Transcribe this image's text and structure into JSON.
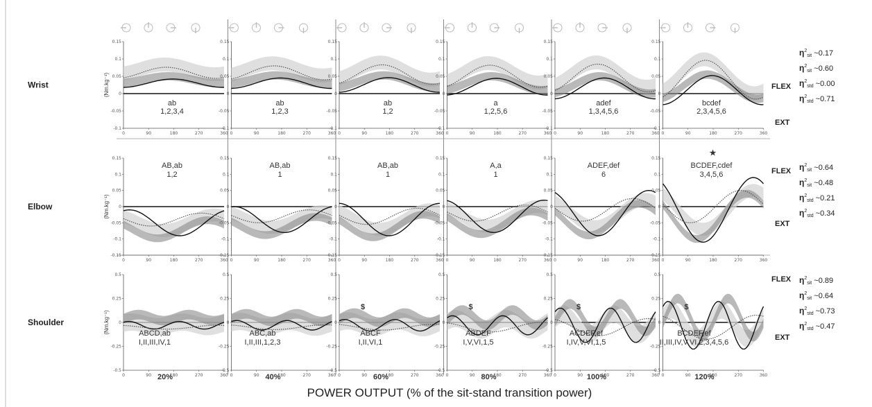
{
  "chart_data": {
    "type": "line",
    "title": "",
    "xlabel": "POWER OUTPUT (% of the sit-stand transition power)",
    "ylabel": "(Nm.kg⁻¹)",
    "columns": [
      "20%",
      "40%",
      "60%",
      "80%",
      "100%",
      "120%"
    ],
    "x_ticks": [
      "0",
      "90",
      "180",
      "270",
      "360"
    ],
    "rows": [
      {
        "name": "Wrist",
        "y_ticks": [
          "0.15",
          "0.1",
          "0.05",
          "0",
          "-0.05",
          "-0.1"
        ],
        "ylim": [
          -0.1,
          0.15
        ],
        "flex_label": "FLEX",
        "ext_label": "EXT",
        "eta": [
          {
            "sub": "sit",
            "value": "0.17"
          },
          {
            "sub": "sit",
            "value": "0.60"
          },
          {
            "sub": "std",
            "value": "0.00"
          },
          {
            "sub": "std",
            "value": "0.71"
          }
        ],
        "annotations": [
          {
            "line1": "ab",
            "line2": "1,2,3,4",
            "mark": ""
          },
          {
            "line1": "ab",
            "line2": "1,2,3",
            "mark": ""
          },
          {
            "line1": "ab",
            "line2": "1,2",
            "mark": ""
          },
          {
            "line1": "a",
            "line2": "1,2,5,6",
            "mark": ""
          },
          {
            "line1": "adef",
            "line2": "1,3,4,5,6",
            "mark": ""
          },
          {
            "line1": "bcdef",
            "line2": "2,3,4,5,6",
            "mark": ""
          }
        ]
      },
      {
        "name": "Elbow",
        "y_ticks": [
          "0.15",
          "0.1",
          "0.05",
          "0",
          "-0.05",
          "-0.1",
          "-0.15"
        ],
        "ylim": [
          -0.15,
          0.15
        ],
        "flex_label": "FLEX",
        "ext_label": "EXT",
        "eta": [
          {
            "sub": "sit",
            "value": "0.64"
          },
          {
            "sub": "sit",
            "value": "0.48"
          },
          {
            "sub": "std",
            "value": "0.21"
          },
          {
            "sub": "std",
            "value": "0.34"
          }
        ],
        "annotations": [
          {
            "line1": "AB,ab",
            "line2": "1,2",
            "mark": ""
          },
          {
            "line1": "AB,ab",
            "line2": "1",
            "mark": ""
          },
          {
            "line1": "AB,ab",
            "line2": "1",
            "mark": ""
          },
          {
            "line1": "A,a",
            "line2": "1",
            "mark": ""
          },
          {
            "line1": "ADEF,def",
            "line2": "6",
            "mark": ""
          },
          {
            "line1": "BCDEF,cdef",
            "line2": "3,4,5,6",
            "mark": "★"
          }
        ]
      },
      {
        "name": "Shoulder",
        "y_ticks": [
          "0.5",
          "0.25",
          "0",
          "-0.25",
          "-0.5"
        ],
        "ylim": [
          -0.5,
          0.5
        ],
        "flex_label": "FLEX",
        "ext_label": "EXT",
        "eta": [
          {
            "sub": "sit",
            "value": "0.89"
          },
          {
            "sub": "sit",
            "value": "0.64"
          },
          {
            "sub": "std",
            "value": "0.73"
          },
          {
            "sub": "std",
            "value": "0.47"
          }
        ],
        "annotations": [
          {
            "line1": "ABCD,ab",
            "line2": "I,II,III,IV,1",
            "mark": ""
          },
          {
            "line1": "ABC,ab",
            "line2": "I,II,III,1,2,3",
            "mark": ""
          },
          {
            "line1": "ABCF",
            "line2": "I,II,VI,1",
            "mark": "$"
          },
          {
            "line1": "ABDEF",
            "line2": "I,V,VI,1,5",
            "mark": "$"
          },
          {
            "line1": "ACDEF,ef",
            "line2": "I,IV,V,VI,1,5",
            "mark": "$"
          },
          {
            "line1": "BCDEF,ef",
            "line2": "II,III,IV,V,VI,2,3,4,5,6",
            "mark": "$"
          }
        ]
      }
    ],
    "series": [
      {
        "name": "",
        "style": "light-band"
      },
      {
        "name": "",
        "style": "dark-band"
      },
      {
        "name": "",
        "style": "black-line"
      },
      {
        "name": "",
        "style": "dotted-line"
      }
    ]
  }
}
